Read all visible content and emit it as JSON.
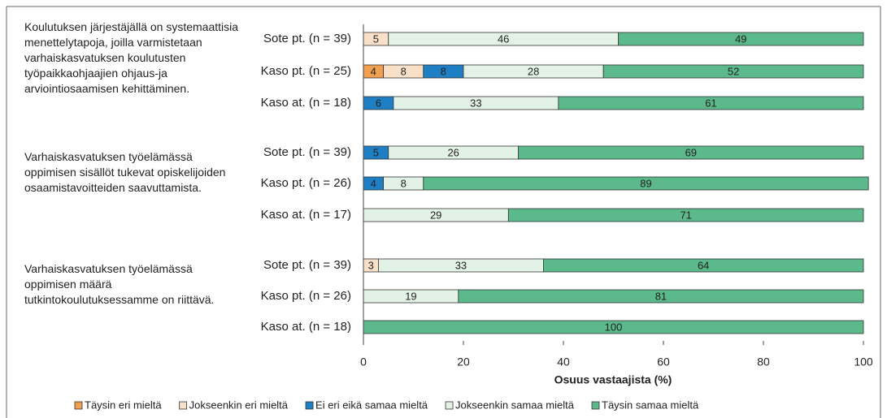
{
  "chart_data": {
    "type": "stacked-bar-horizontal",
    "groups": [
      "Koulutuksen järjestäjällä on systemaattisia menettelytapoja, joilla varmistetaan varhaiskasvatuksen koulutusten työpaikkaohjaajien ohjaus-ja arviointiosaamisen kehittäminen.",
      "Varhaiskasvatuksen työelämässä oppimisen sisällöt tukevat opiskelijoiden osaamistavoitteiden saavuttamista.",
      "Varhaiskasvatuksen työelämässä oppimisen määrä tutkintokoulutuksessamme on riittävä."
    ],
    "categories": [
      "Sote pt. (n = 39)",
      "Kaso pt. (n = 25)",
      "Kaso at. (n = 18)",
      "Sote pt. (n = 39)",
      "Kaso pt. (n = 26)",
      "Kaso at. (n = 17)",
      "Sote pt. (n = 39)",
      "Kaso pt. (n = 26)",
      "Kaso at. (n = 18)"
    ],
    "series": [
      {
        "name": "Täysin eri mieltä",
        "color": "#f0a050",
        "values": [
          0,
          4,
          0,
          0,
          0,
          0,
          0,
          0,
          0
        ]
      },
      {
        "name": "Jokseenkin eri mieltä",
        "color": "#fbe0c8",
        "values": [
          5,
          8,
          0,
          0,
          0,
          0,
          3,
          0,
          0
        ]
      },
      {
        "name": "Ei eri eikä samaa mieltä",
        "color": "#1f7fc4",
        "values": [
          0,
          8,
          6,
          5,
          4,
          0,
          0,
          0,
          0
        ]
      },
      {
        "name": "Jokseenkin samaa mieltä",
        "color": "#e2f2e6",
        "values": [
          46,
          28,
          33,
          26,
          8,
          29,
          33,
          19,
          0
        ]
      },
      {
        "name": "Täysin samaa mieltä",
        "color": "#5bb98b",
        "values": [
          49,
          52,
          61,
          69,
          89,
          71,
          64,
          81,
          100
        ]
      }
    ],
    "xlabel": "Osuus vastaajista (%)",
    "xlim": [
      0,
      100
    ],
    "xticks": [
      0,
      20,
      40,
      60,
      80,
      100
    ],
    "legend": "bottom"
  }
}
